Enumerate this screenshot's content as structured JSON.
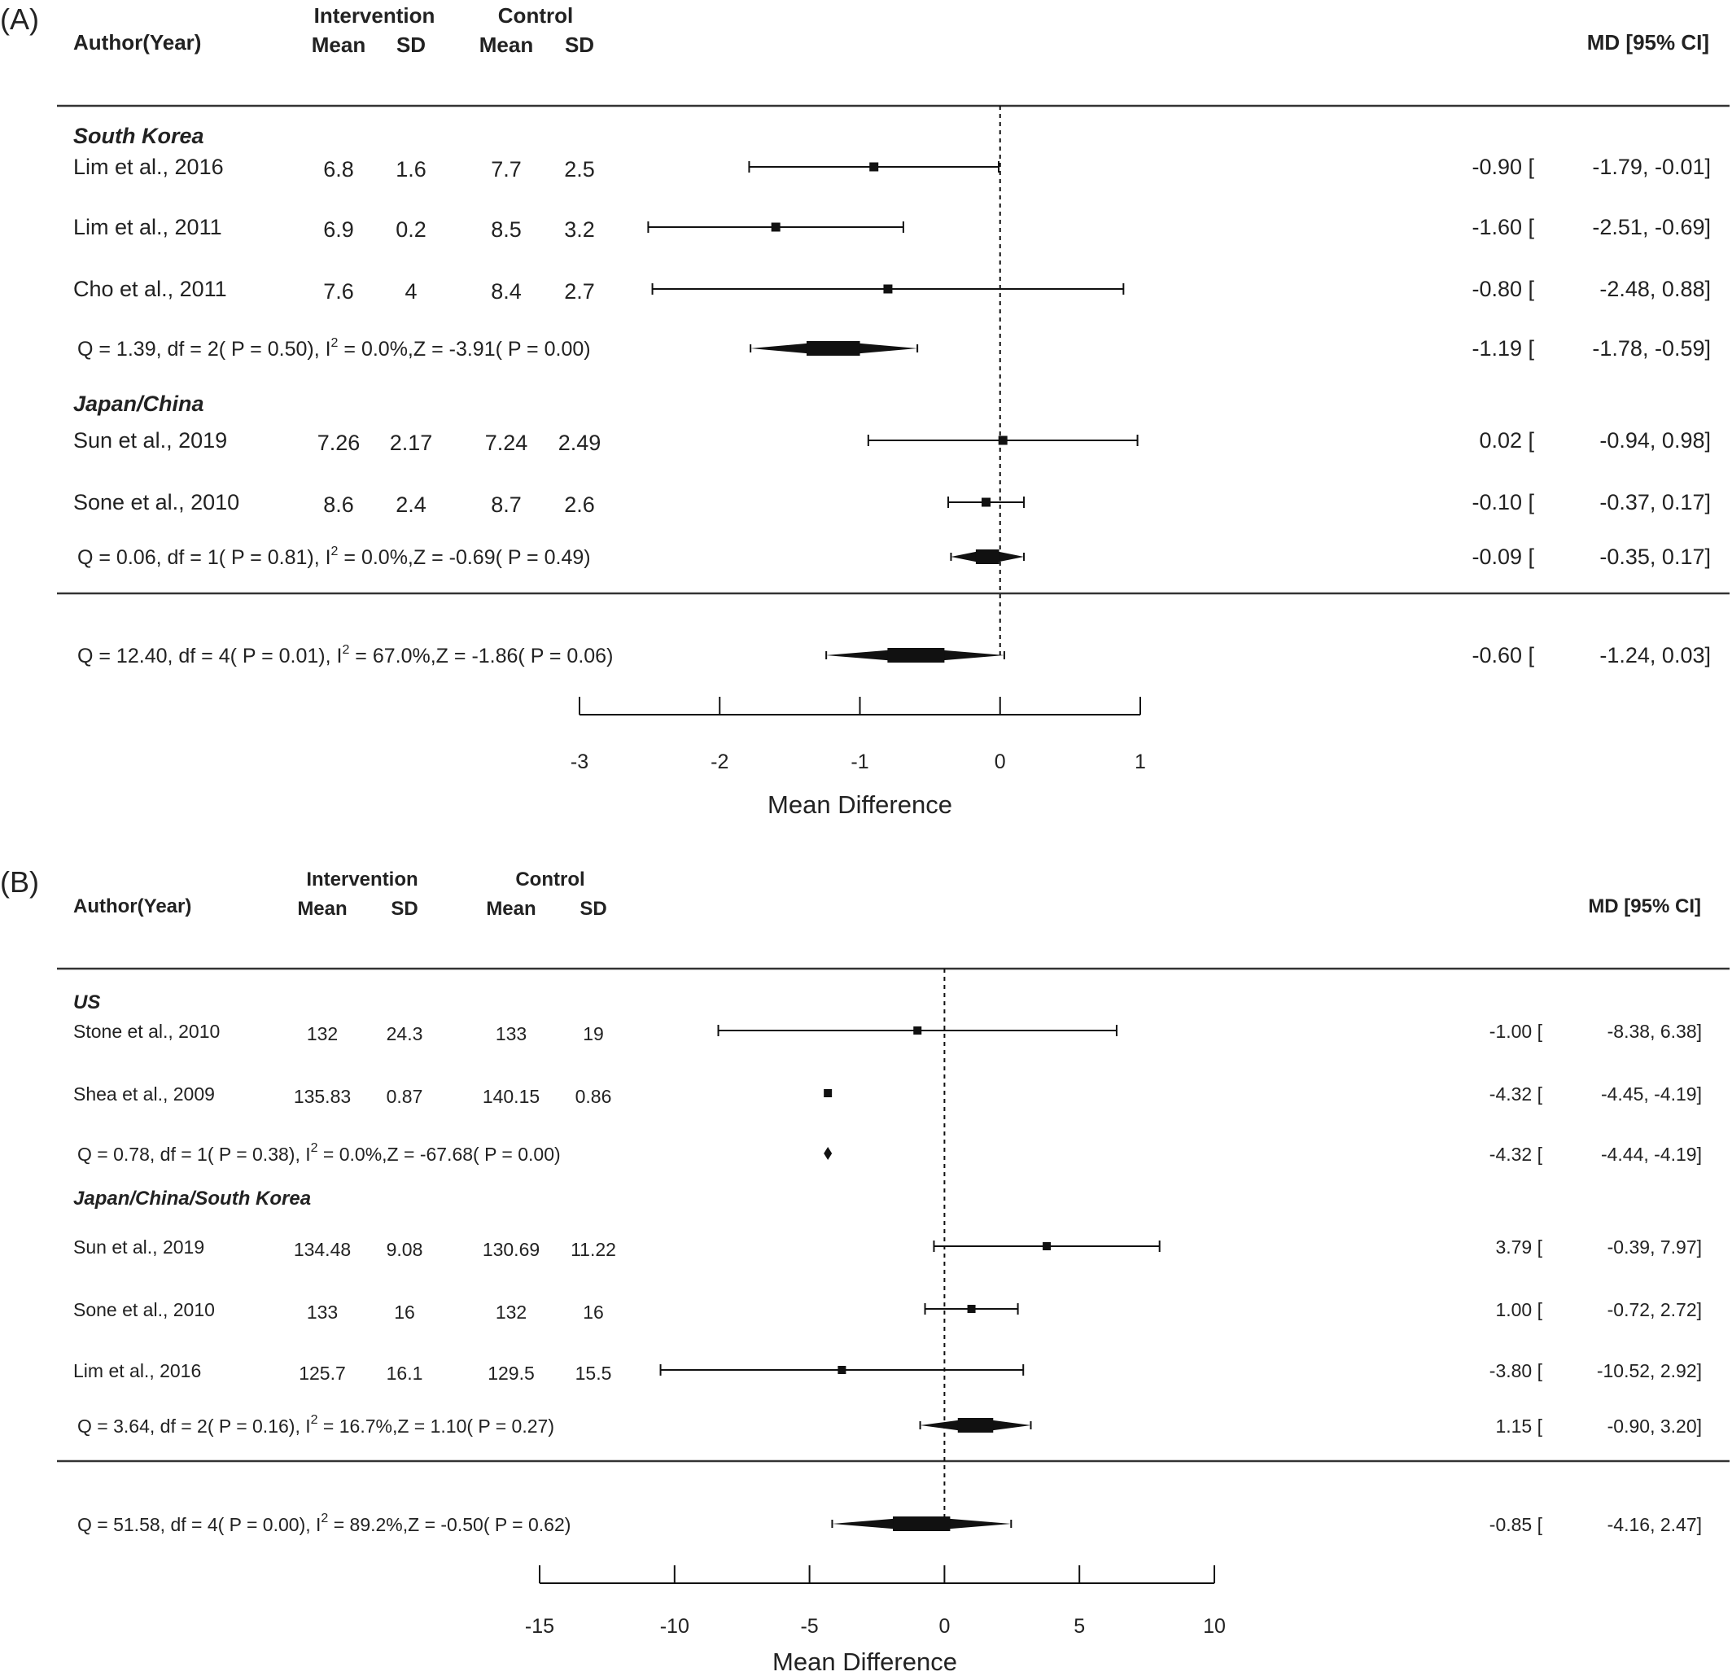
{
  "panels": [
    {
      "label": "(A)",
      "headers": {
        "author": "Author(Year)",
        "intervention": "Intervention",
        "control": "Control",
        "mean": "Mean",
        "sd": "SD",
        "md": "MD [95% CI]"
      },
      "groups": [
        {
          "name": "South Korea",
          "studies": [
            {
              "author": "Lim et al., 2016",
              "int_mean": "6.8",
              "int_sd": "1.6",
              "ctl_mean": "7.7",
              "ctl_sd": "2.5",
              "md_text": "-0.90 [-1.79, -0.01]"
            },
            {
              "author": "Lim et al., 2011",
              "int_mean": "6.9",
              "int_sd": "0.2",
              "ctl_mean": "8.5",
              "ctl_sd": "3.2",
              "md_text": "-1.60 [-2.51, -0.69]"
            },
            {
              "author": "Cho et al., 2011",
              "int_mean": "7.6",
              "int_sd": "4",
              "ctl_mean": "8.4",
              "ctl_sd": "2.7",
              "md_text": "-0.80 [-2.48, 0.88]"
            }
          ],
          "summary": {
            "prefix": "Q = 1.39, df = 2( P = 0.50), I",
            "suffix": " = 0.0%,Z = -3.91( P = 0.00)",
            "md_text": "-1.19 [-1.78, -0.59]"
          }
        },
        {
          "name": "Japan/China",
          "studies": [
            {
              "author": "Sun et al., 2019",
              "int_mean": "7.26",
              "int_sd": "2.17",
              "ctl_mean": "7.24",
              "ctl_sd": "2.49",
              "md_text": "0.02 [-0.94, 0.98]"
            },
            {
              "author": "Sone et al., 2010",
              "int_mean": "8.6",
              "int_sd": "2.4",
              "ctl_mean": "8.7",
              "ctl_sd": "2.6",
              "md_text": "-0.10 [-0.37, 0.17]"
            }
          ],
          "summary": {
            "prefix": "Q = 0.06, df = 1( P = 0.81), I",
            "suffix": " = 0.0%,Z = -0.69( P = 0.49)",
            "md_text": "-0.09 [-0.35, 0.17]"
          }
        }
      ],
      "overall": {
        "prefix": "Q = 12.40, df = 4( P = 0.01), I",
        "suffix": " = 67.0%,Z = -1.86( P = 0.06)",
        "md_text": "-0.60 [-1.24, 0.03]"
      },
      "superscript": "2",
      "xaxis": {
        "label": "Mean Difference",
        "ticks": [
          "-3",
          "-2",
          "-1",
          "0",
          "1"
        ]
      }
    },
    {
      "label": "(B)",
      "headers": {
        "author": "Author(Year)",
        "intervention": "Intervention",
        "control": "Control",
        "mean": "Mean",
        "sd": "SD",
        "md": "MD [95% CI]"
      },
      "groups": [
        {
          "name": "US",
          "studies": [
            {
              "author": "Stone et al., 2010",
              "int_mean": "132",
              "int_sd": "24.3",
              "ctl_mean": "133",
              "ctl_sd": "19",
              "md_text": "-1.00 [ -8.38, 6.38]"
            },
            {
              "author": "Shea et al., 2009",
              "int_mean": "135.83",
              "int_sd": "0.87",
              "ctl_mean": "140.15",
              "ctl_sd": "0.86",
              "md_text": "-4.32 [ -4.45, -4.19]"
            }
          ],
          "summary": {
            "prefix": "Q = 0.78, df = 1( P = 0.38), I",
            "suffix": " = 0.0%,Z = -67.68( P = 0.00)",
            "md_text": "-4.32 [ -4.44, -4.19]"
          }
        },
        {
          "name": "Japan/China/South Korea",
          "studies": [
            {
              "author": "Sun et al., 2019",
              "int_mean": "134.48",
              "int_sd": "9.08",
              "ctl_mean": "130.69",
              "ctl_sd": "11.22",
              "md_text": "3.79 [ -0.39, 7.97]"
            },
            {
              "author": "Sone et al., 2010",
              "int_mean": "133",
              "int_sd": "16",
              "ctl_mean": "132",
              "ctl_sd": "16",
              "md_text": "1.00 [ -0.72, 2.72]"
            },
            {
              "author": "Lim et al., 2016",
              "int_mean": "125.7",
              "int_sd": "16.1",
              "ctl_mean": "129.5",
              "ctl_sd": "15.5",
              "md_text": "-3.80 [-10.52, 2.92]"
            }
          ],
          "summary": {
            "prefix": "Q = 3.64, df = 2( P = 0.16), I",
            "suffix": " = 16.7%,Z = 1.10( P = 0.27)",
            "md_text": "1.15 [ -0.90, 3.20]"
          }
        }
      ],
      "overall": {
        "prefix": "Q = 51.58, df = 4( P = 0.00), I",
        "suffix": " = 89.2%,Z = -0.50( P = 0.62)",
        "md_text": "-0.85 [ -4.16, 2.47]"
      },
      "superscript": "2",
      "xaxis": {
        "label": "Mean Difference",
        "ticks": [
          "-15",
          "-10",
          "-5",
          "0",
          "5",
          "10"
        ]
      }
    }
  ],
  "chart_data": [
    {
      "type": "forest",
      "panel": "(A)",
      "xlabel": "Mean Difference",
      "xlim": [
        -3,
        1
      ],
      "xticks": [
        -3,
        -2,
        -1,
        0,
        1
      ],
      "reference_line": 0,
      "rows": [
        {
          "kind": "study",
          "group": "South Korea",
          "label": "Lim et al., 2016",
          "md": -0.9,
          "lo": -1.79,
          "hi": -0.01
        },
        {
          "kind": "study",
          "group": "South Korea",
          "label": "Lim et al., 2011",
          "md": -1.6,
          "lo": -2.51,
          "hi": -0.69
        },
        {
          "kind": "study",
          "group": "South Korea",
          "label": "Cho et al., 2011",
          "md": -0.8,
          "lo": -2.48,
          "hi": 0.88
        },
        {
          "kind": "summary",
          "group": "South Korea",
          "md": -1.19,
          "lo": -1.78,
          "hi": -0.59
        },
        {
          "kind": "study",
          "group": "Japan/China",
          "label": "Sun et al., 2019",
          "md": 0.02,
          "lo": -0.94,
          "hi": 0.98
        },
        {
          "kind": "study",
          "group": "Japan/China",
          "label": "Sone et al., 2010",
          "md": -0.1,
          "lo": -0.37,
          "hi": 0.17
        },
        {
          "kind": "summary",
          "group": "Japan/China",
          "md": -0.09,
          "lo": -0.35,
          "hi": 0.17
        },
        {
          "kind": "overall",
          "md": -0.6,
          "lo": -1.24,
          "hi": 0.03
        }
      ]
    },
    {
      "type": "forest",
      "panel": "(B)",
      "xlabel": "Mean Difference",
      "xlim": [
        -15,
        10
      ],
      "xticks": [
        -15,
        -10,
        -5,
        0,
        5,
        10
      ],
      "reference_line": 0,
      "rows": [
        {
          "kind": "study",
          "group": "US",
          "label": "Stone et al., 2010",
          "md": -1.0,
          "lo": -8.38,
          "hi": 6.38
        },
        {
          "kind": "study",
          "group": "US",
          "label": "Shea et al., 2009",
          "md": -4.32,
          "lo": -4.45,
          "hi": -4.19
        },
        {
          "kind": "summary",
          "group": "US",
          "md": -4.32,
          "lo": -4.44,
          "hi": -4.19
        },
        {
          "kind": "study",
          "group": "Japan/China/South Korea",
          "label": "Sun et al., 2019",
          "md": 3.79,
          "lo": -0.39,
          "hi": 7.97
        },
        {
          "kind": "study",
          "group": "Japan/China/South Korea",
          "label": "Sone et al., 2010",
          "md": 1.0,
          "lo": -0.72,
          "hi": 2.72
        },
        {
          "kind": "study",
          "group": "Japan/China/South Korea",
          "label": "Lim et al., 2016",
          "md": -3.8,
          "lo": -10.52,
          "hi": 2.92
        },
        {
          "kind": "summary",
          "group": "Japan/China/South Korea",
          "md": 1.15,
          "lo": -0.9,
          "hi": 3.2
        },
        {
          "kind": "overall",
          "md": -0.85,
          "lo": -4.16,
          "hi": 2.47
        }
      ]
    }
  ]
}
